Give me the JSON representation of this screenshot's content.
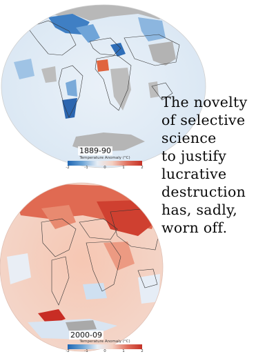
{
  "maps": {
    "top": {
      "period_label": "1889-90"
    },
    "bottom": {
      "period_label": "2000-09"
    }
  },
  "legend": {
    "title": "Temperature Anomaly (°C)",
    "ticks": [
      "-2",
      "-1",
      "0",
      "1",
      "2"
    ],
    "colors": {
      "cold": "#1f66b3",
      "neutral": "#eef3f8",
      "warm": "#c43126"
    }
  },
  "caption": {
    "lines": [
      "The novelty",
      "of selective",
      "science",
      "to justify",
      "lucrative",
      "destruction",
      "has, sadly,",
      "worn off."
    ]
  }
}
